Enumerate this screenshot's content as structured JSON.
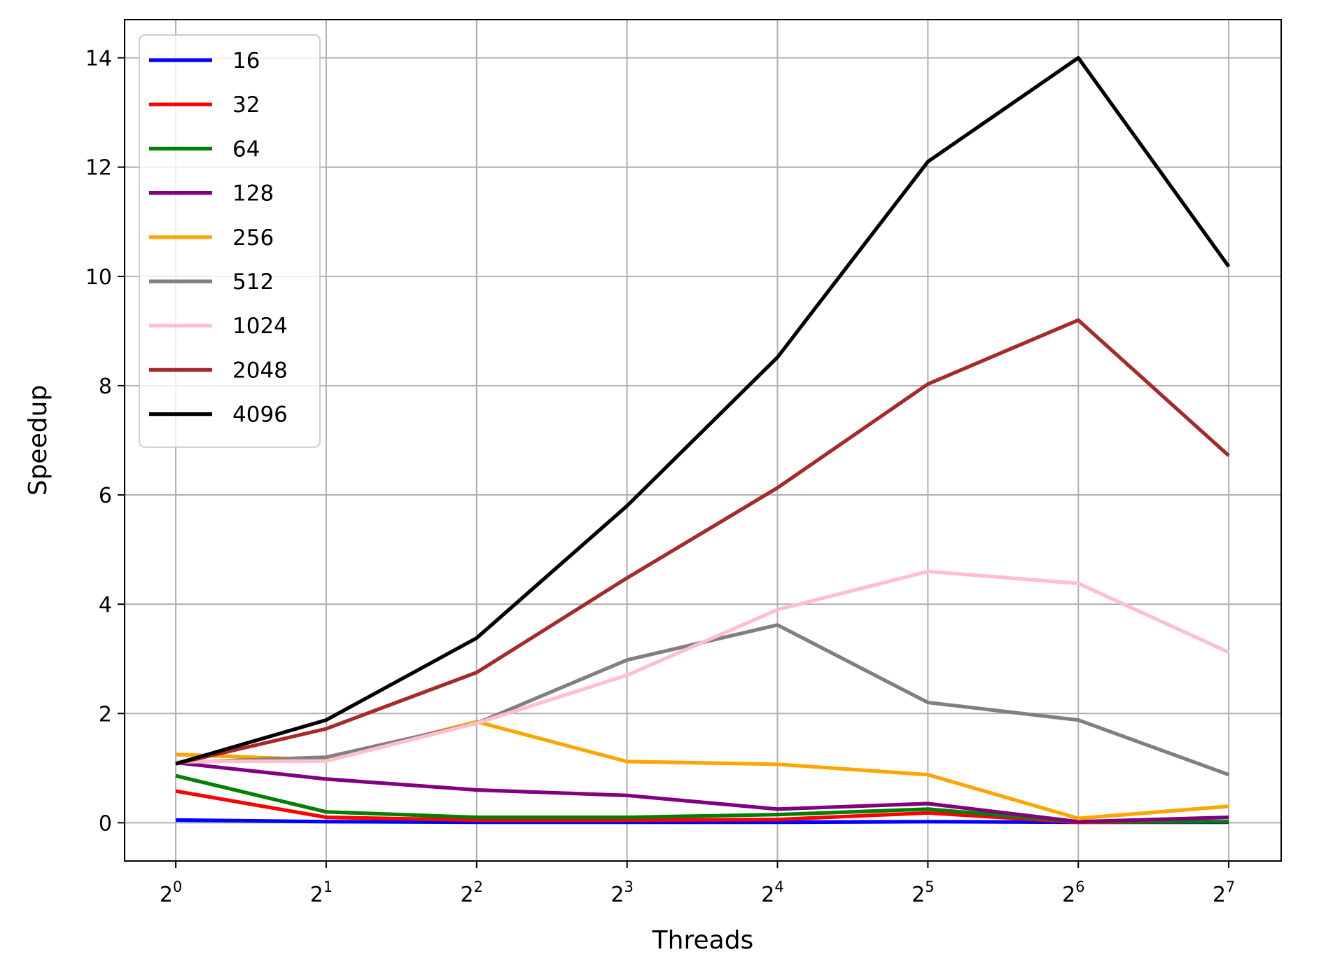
{
  "chart_data": {
    "type": "line",
    "title": "",
    "xlabel": "Threads",
    "ylabel": "Speedup",
    "x_scale": "log2",
    "x": [
      1,
      2,
      4,
      8,
      16,
      32,
      64,
      128
    ],
    "x_tick_base": "2",
    "x_tick_exponents": [
      "0",
      "1",
      "2",
      "3",
      "4",
      "5",
      "6",
      "7"
    ],
    "xlim": [
      0.79,
      163
    ],
    "ylim": [
      -0.7,
      14.7
    ],
    "y_ticks": [
      0,
      2,
      4,
      6,
      8,
      10,
      12,
      14
    ],
    "y_tick_labels": [
      "0",
      "2",
      "4",
      "6",
      "8",
      "10",
      "12",
      "14"
    ],
    "grid": true,
    "legend_position": "upper-left",
    "series": [
      {
        "name": "16",
        "color": "#0000ff",
        "values": [
          0.05,
          0.02,
          0.01,
          0.01,
          0.01,
          0.02,
          0.01,
          0.01
        ]
      },
      {
        "name": "32",
        "color": "#ff0000",
        "values": [
          0.58,
          0.1,
          0.05,
          0.05,
          0.06,
          0.18,
          0.01,
          0.02
        ]
      },
      {
        "name": "64",
        "color": "#008000",
        "values": [
          0.86,
          0.2,
          0.1,
          0.1,
          0.15,
          0.25,
          0.02,
          0.02
        ]
      },
      {
        "name": "128",
        "color": "#800080",
        "values": [
          1.1,
          0.8,
          0.6,
          0.5,
          0.25,
          0.35,
          0.02,
          0.1
        ]
      },
      {
        "name": "256",
        "color": "#ffa500",
        "values": [
          1.25,
          1.15,
          1.85,
          1.12,
          1.07,
          0.88,
          0.08,
          0.3
        ]
      },
      {
        "name": "512",
        "color": "#808080",
        "values": [
          1.1,
          1.2,
          1.82,
          2.98,
          3.62,
          2.2,
          1.88,
          0.88
        ]
      },
      {
        "name": "1024",
        "color": "#ffc0cb",
        "values": [
          1.12,
          1.13,
          1.82,
          2.7,
          3.9,
          4.6,
          4.38,
          3.12
        ]
      },
      {
        "name": "2048",
        "color": "#a52a2a",
        "values": [
          1.08,
          1.72,
          2.75,
          4.48,
          6.13,
          8.03,
          9.2,
          6.72
        ]
      },
      {
        "name": "4096",
        "color": "#000000",
        "values": [
          1.08,
          1.88,
          3.38,
          5.8,
          8.52,
          12.1,
          14.0,
          10.18
        ]
      }
    ]
  }
}
